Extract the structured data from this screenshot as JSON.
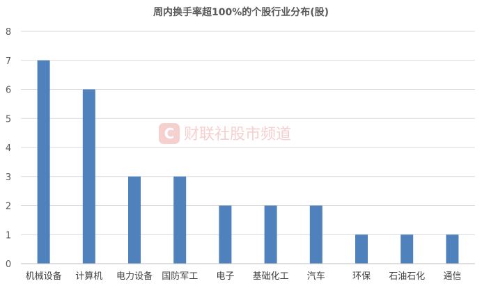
{
  "chart_data": {
    "type": "bar",
    "title": "周内换手率超100%的个股行业分布(股)",
    "categories": [
      "机械设备",
      "计算机",
      "电力设备",
      "国防军工",
      "电子",
      "基础化工",
      "汽车",
      "环保",
      "石油石化",
      "通信"
    ],
    "series": [
      {
        "values": [
          7,
          6,
          3,
          3,
          2,
          2,
          2,
          1,
          1,
          1
        ]
      }
    ],
    "ylim": [
      0,
      8
    ],
    "yticks": [
      "0",
      "1",
      "2",
      "3",
      "4",
      "5",
      "6",
      "7",
      "8"
    ],
    "grid": true,
    "xlabel": "",
    "ylabel": "",
    "bar_color": "#4f81bd"
  },
  "watermark": {
    "logo_letter": "C",
    "text": "财联社股市频道"
  },
  "colors": {
    "grid": "#d9d9d9",
    "axis": "#bfbfbf",
    "watermark": "#f3c4c4"
  }
}
